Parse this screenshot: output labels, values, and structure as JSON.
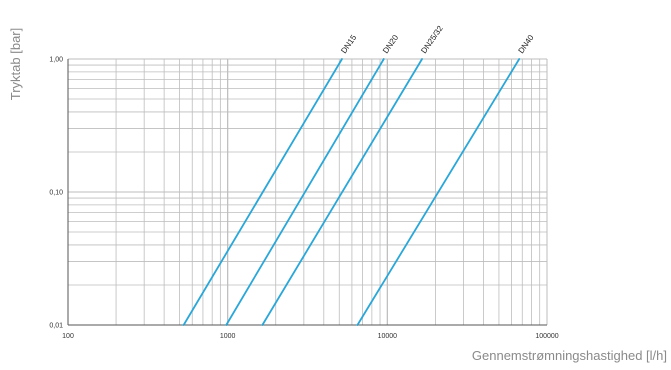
{
  "chart_data": {
    "type": "line",
    "xlabel": "Gennemstrømningshastighed [l/h]",
    "ylabel": "Tryktab [bar]",
    "xscale": "log",
    "yscale": "log",
    "xlim": [
      100,
      100000
    ],
    "ylim": [
      0.01,
      1
    ],
    "x_tick_labels": [
      "100",
      "1000",
      "10000",
      "100000"
    ],
    "y_tick_labels": [
      "0,01",
      "0,10",
      "1,00"
    ],
    "grid": true,
    "line_color": "#2aa7d8",
    "series": [
      {
        "name": "DN15",
        "points": [
          [
            530,
            0.01
          ],
          [
            5200,
            1.0
          ]
        ]
      },
      {
        "name": "DN20",
        "points": [
          [
            980,
            0.01
          ],
          [
            9500,
            1.0
          ]
        ]
      },
      {
        "name": "DN25/32",
        "points": [
          [
            1650,
            0.01
          ],
          [
            16500,
            1.0
          ]
        ]
      },
      {
        "name": "DN40",
        "points": [
          [
            6500,
            0.01
          ],
          [
            67000,
            1.0
          ]
        ]
      }
    ]
  }
}
